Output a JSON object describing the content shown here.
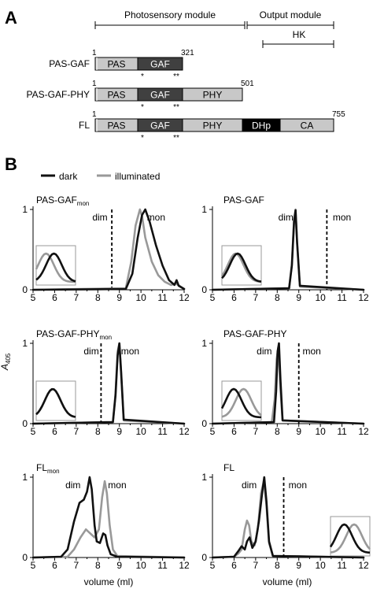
{
  "panels": {
    "a": "A",
    "b": "B"
  },
  "domain_diagram": {
    "photosensory_label": "Photosensory module",
    "output_label": "Output module",
    "hk_label": "HK",
    "constructs": [
      {
        "name": "PAS-GAF",
        "start": "1",
        "end": "321",
        "domains": [
          {
            "label": "PAS",
            "dark": false
          },
          {
            "label": "GAF",
            "dark": true
          }
        ],
        "marks": [
          "*",
          "**"
        ]
      },
      {
        "name": "PAS-GAF-PHY",
        "start": "1",
        "end": "501",
        "domains": [
          {
            "label": "PAS",
            "dark": false
          },
          {
            "label": "GAF",
            "dark": true
          },
          {
            "label": "PHY",
            "dark": false
          }
        ],
        "marks": [
          "*",
          "**"
        ]
      },
      {
        "name": "FL",
        "start": "1",
        "end": "755",
        "domains": [
          {
            "label": "PAS",
            "dark": false
          },
          {
            "label": "GAF",
            "dark": true
          },
          {
            "label": "PHY",
            "dark": false
          },
          {
            "label": "DHp",
            "dark": true,
            "black": true
          },
          {
            "label": "CA",
            "dark": false
          }
        ],
        "marks": [
          "*",
          "**"
        ]
      }
    ]
  },
  "legend": {
    "dark": "dark",
    "illuminated": "illuminated"
  },
  "colors": {
    "dark_line": "#111111",
    "illuminated_line": "#999999",
    "light_domain": "#c8c8c8",
    "dark_domain": "#404040",
    "black_domain": "#000000"
  },
  "chart_data": [
    {
      "type": "line",
      "title_main": "PAS-GAF",
      "title_sub": "mon",
      "xlim": [
        5,
        12
      ],
      "ylim": [
        0,
        1
      ],
      "xticks": [
        "5",
        "6",
        "7",
        "8",
        "9",
        "10",
        "11",
        "12"
      ],
      "yticks": [
        "0",
        "1"
      ],
      "dashed_x": 8.65,
      "annotations": [
        {
          "text": "dim",
          "x": 8.1,
          "y": 0.9
        },
        {
          "text": "mon",
          "x": 10.7,
          "y": 0.9
        }
      ],
      "series": [
        {
          "name": "dark",
          "x": [
            5,
            9.3,
            9.6,
            9.85,
            10.05,
            10.2,
            10.4,
            10.7,
            11.0,
            11.3,
            11.55,
            11.65,
            11.75,
            12
          ],
          "y": [
            0,
            0.01,
            0.2,
            0.65,
            0.93,
            1.0,
            0.85,
            0.55,
            0.3,
            0.12,
            0.06,
            0.12,
            0.05,
            0.01
          ]
        },
        {
          "name": "illuminated",
          "x": [
            5,
            9.3,
            9.55,
            9.75,
            9.95,
            10.05,
            10.2,
            10.5,
            10.8,
            11.1,
            11.4,
            11.6,
            12
          ],
          "y": [
            0,
            0.02,
            0.35,
            0.8,
            1.0,
            0.92,
            0.65,
            0.35,
            0.18,
            0.1,
            0.06,
            0.08,
            0.01
          ]
        }
      ],
      "inset": {
        "xlim": [
          5.0,
          7.0
        ],
        "ylim": [
          0,
          0.5
        ]
      }
    },
    {
      "type": "line",
      "title_main": "PAS-GAF",
      "title_sub": "",
      "xlim": [
        5,
        12
      ],
      "ylim": [
        0,
        1
      ],
      "xticks": [
        "5",
        "6",
        "7",
        "8",
        "9",
        "10",
        "11",
        "12"
      ],
      "yticks": [
        "0",
        "1"
      ],
      "dashed_x": 10.3,
      "annotations": [
        {
          "text": "dim",
          "x": 8.4,
          "y": 0.9
        },
        {
          "text": "mon",
          "x": 11.0,
          "y": 0.9
        }
      ],
      "series": [
        {
          "name": "dark",
          "x": [
            5,
            8.55,
            8.68,
            8.78,
            8.85,
            8.92,
            9.05,
            12
          ],
          "y": [
            0,
            0.02,
            0.3,
            0.85,
            0.99,
            0.6,
            0.05,
            0
          ]
        },
        {
          "name": "illuminated",
          "x": [
            5,
            8.55,
            8.68,
            8.78,
            8.85,
            8.92,
            9.05,
            12
          ],
          "y": [
            0,
            0.02,
            0.32,
            0.88,
            1.0,
            0.58,
            0.04,
            0
          ]
        }
      ],
      "inset": {
        "xlim": [
          5.0,
          7.0
        ],
        "ylim": [
          0,
          0.5
        ]
      }
    },
    {
      "type": "line",
      "title_main": "PAS-GAF-PHY",
      "title_sub": "mon",
      "xlim": [
        5,
        12
      ],
      "ylim": [
        0,
        1
      ],
      "xticks": [
        "5",
        "6",
        "7",
        "8",
        "9",
        "10",
        "11",
        "12"
      ],
      "yticks": [
        "0",
        "1"
      ],
      "dashed_x": 8.15,
      "annotations": [
        {
          "text": "dim",
          "x": 7.7,
          "y": 0.9
        },
        {
          "text": "mon",
          "x": 9.5,
          "y": 0.9
        }
      ],
      "series": [
        {
          "name": "dark",
          "x": [
            5,
            8.7,
            8.82,
            8.92,
            9.0,
            9.08,
            9.2,
            12
          ],
          "y": [
            0,
            0.02,
            0.35,
            0.85,
            1.0,
            0.65,
            0.05,
            0
          ]
        },
        {
          "name": "illuminated",
          "x": [
            5,
            8.7,
            8.82,
            8.92,
            9.0,
            9.08,
            9.2,
            12
          ],
          "y": [
            0,
            0.02,
            0.38,
            0.9,
            1.0,
            0.62,
            0.04,
            0
          ]
        }
      ],
      "inset": {
        "xlim": [
          5.0,
          7.0
        ],
        "ylim": [
          0,
          0.5
        ]
      }
    },
    {
      "type": "line",
      "title_main": "PAS-GAF-PHY",
      "title_sub": "",
      "xlim": [
        5,
        12
      ],
      "ylim": [
        0,
        1
      ],
      "xticks": [
        "5",
        "6",
        "7",
        "8",
        "9",
        "10",
        "11",
        "12"
      ],
      "yticks": [
        "0",
        "1"
      ],
      "dashed_x": 9.0,
      "annotations": [
        {
          "text": "dim",
          "x": 7.4,
          "y": 0.9
        },
        {
          "text": "mon",
          "x": 9.6,
          "y": 0.9
        }
      ],
      "series": [
        {
          "name": "dark",
          "x": [
            5,
            7.85,
            7.95,
            8.02,
            8.08,
            8.15,
            8.25,
            12
          ],
          "y": [
            0,
            0.02,
            0.4,
            0.9,
            1.0,
            0.55,
            0.04,
            0
          ]
        },
        {
          "name": "illuminated",
          "x": [
            5,
            7.75,
            7.88,
            7.97,
            8.05,
            8.13,
            8.25,
            12
          ],
          "y": [
            0,
            0.02,
            0.3,
            0.8,
            0.95,
            0.5,
            0.04,
            0
          ]
        }
      ],
      "inset": {
        "xlim": [
          5.0,
          7.0
        ],
        "ylim": [
          0,
          0.5
        ]
      }
    },
    {
      "type": "line",
      "title_main": "FL",
      "title_sub": "mon",
      "xlim": [
        5,
        12
      ],
      "ylim": [
        0,
        1
      ],
      "xticks": [
        "5",
        "6",
        "7",
        "8",
        "9",
        "10",
        "11",
        "12"
      ],
      "yticks": [
        "0",
        "1"
      ],
      "dashed_x": null,
      "annotations": [
        {
          "text": "dim",
          "x": 6.85,
          "y": 0.9
        },
        {
          "text": "mon",
          "x": 8.9,
          "y": 0.9
        }
      ],
      "series": [
        {
          "name": "dark",
          "x": [
            5,
            6.3,
            6.6,
            6.9,
            7.15,
            7.35,
            7.5,
            7.62,
            7.72,
            7.85,
            7.95,
            8.1,
            8.25,
            8.35,
            8.45,
            8.6,
            8.9,
            12
          ],
          "y": [
            0,
            0.01,
            0.1,
            0.45,
            0.68,
            0.72,
            0.82,
            1.0,
            0.85,
            0.4,
            0.2,
            0.18,
            0.3,
            0.28,
            0.15,
            0.04,
            0.01,
            0
          ]
        },
        {
          "name": "illuminated",
          "x": [
            5,
            6.6,
            6.9,
            7.2,
            7.45,
            7.65,
            7.85,
            8.05,
            8.2,
            8.32,
            8.42,
            8.55,
            8.7,
            8.9,
            12
          ],
          "y": [
            0,
            0.01,
            0.1,
            0.25,
            0.35,
            0.3,
            0.25,
            0.35,
            0.75,
            0.95,
            0.8,
            0.4,
            0.1,
            0.02,
            0
          ]
        }
      ],
      "inset": null
    },
    {
      "type": "line",
      "title_main": "FL",
      "title_sub": "",
      "xlim": [
        5,
        12
      ],
      "ylim": [
        0,
        1
      ],
      "xticks": [
        "5",
        "6",
        "7",
        "8",
        "9",
        "10",
        "11",
        "12"
      ],
      "yticks": [
        "0",
        "1"
      ],
      "dashed_x": 8.3,
      "annotations": [
        {
          "text": "dim",
          "x": 6.7,
          "y": 0.9
        },
        {
          "text": "mon",
          "x": 8.95,
          "y": 0.9
        }
      ],
      "series": [
        {
          "name": "dark",
          "x": [
            5,
            6.0,
            6.2,
            6.35,
            6.5,
            6.6,
            6.72,
            6.85,
            7.0,
            7.15,
            7.3,
            7.4,
            7.5,
            7.62,
            7.8,
            12
          ],
          "y": [
            0,
            0.01,
            0.08,
            0.14,
            0.1,
            0.2,
            0.25,
            0.12,
            0.2,
            0.45,
            0.8,
            1.0,
            0.7,
            0.2,
            0.02,
            0
          ]
        },
        {
          "name": "illuminated",
          "x": [
            5,
            6.0,
            6.2,
            6.35,
            6.5,
            6.6,
            6.7,
            6.8,
            6.95,
            7.1,
            7.25,
            7.38,
            7.5,
            7.62,
            7.8,
            12
          ],
          "y": [
            0,
            0.01,
            0.05,
            0.1,
            0.35,
            0.46,
            0.4,
            0.2,
            0.15,
            0.35,
            0.8,
            0.95,
            0.65,
            0.18,
            0.02,
            0
          ]
        }
      ],
      "inset": {
        "xlim": [
          10.0,
          12.0
        ],
        "ylim": [
          0,
          0.5
        ]
      }
    }
  ],
  "axes_labels": {
    "ylabel": "A",
    "ylabel_sub": "405",
    "xlabel": "volume (ml)"
  }
}
